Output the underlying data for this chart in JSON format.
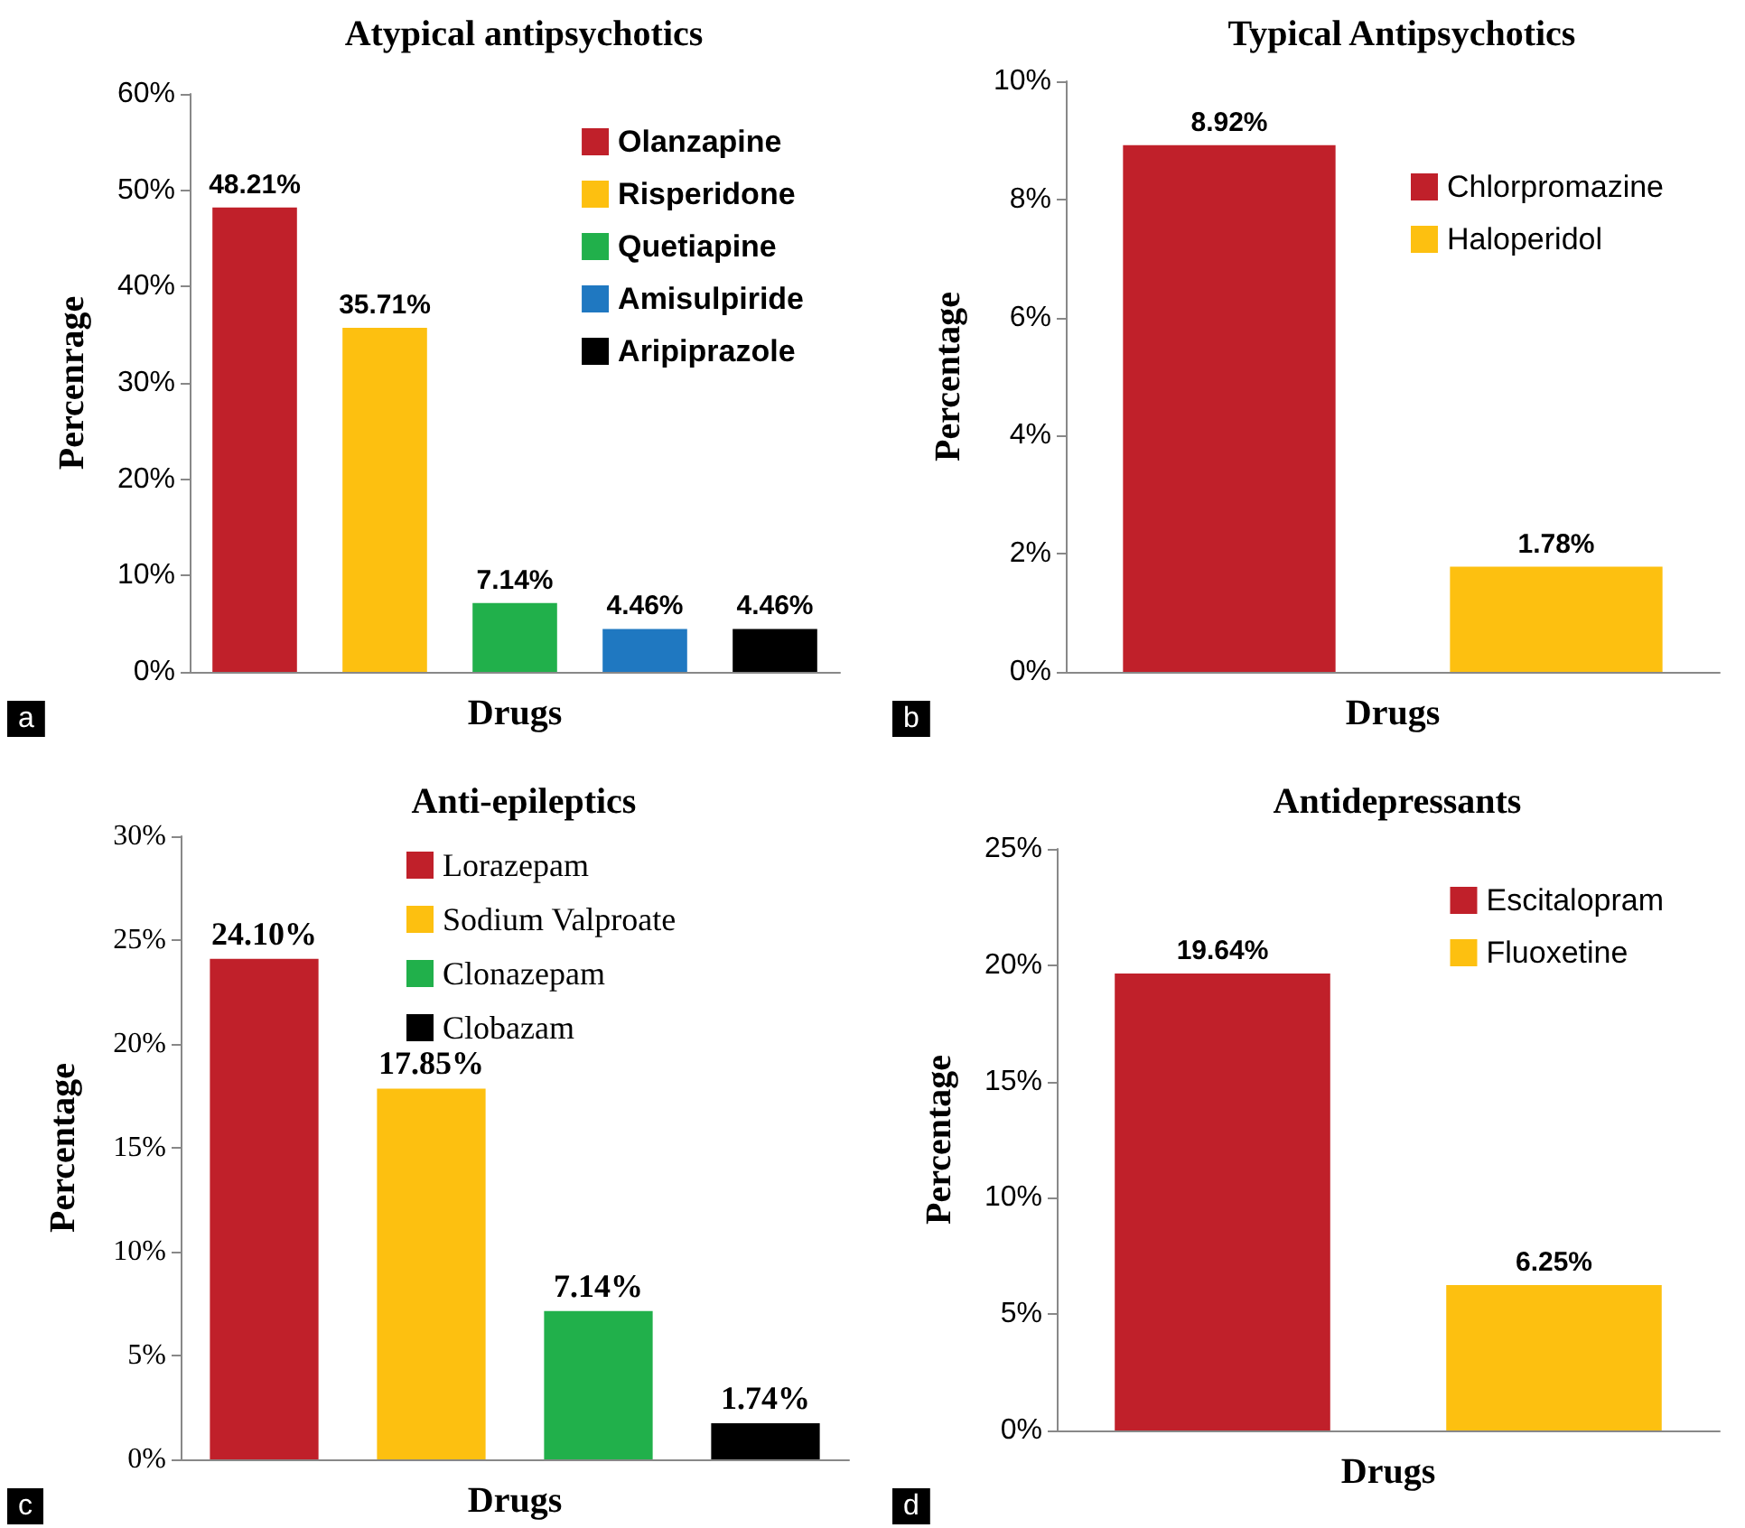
{
  "chart_data": [
    {
      "type": "bar",
      "title": "Atypical antipsychotics",
      "xlabel": "Drugs",
      "ylabel": "Percenrage",
      "categories": [
        null,
        null,
        null,
        null,
        null
      ],
      "ylim": [
        0,
        60
      ],
      "yticks": [
        {
          "value": 0,
          "label": "0%"
        },
        {
          "value": 10,
          "label": "10%"
        },
        {
          "value": 20,
          "label": "20%"
        },
        {
          "value": 30,
          "label": "30%"
        },
        {
          "value": 40,
          "label": "40%"
        },
        {
          "value": 50,
          "label": "50%"
        },
        {
          "value": 60,
          "label": "60%"
        }
      ],
      "legend": "top right",
      "grid": false,
      "annotations": [
        "a"
      ],
      "series": [
        {
          "name": "Olanzapine",
          "color": "#c0202a",
          "values": [
            48.21,
            null,
            null,
            null,
            null
          ],
          "value_labels": [
            "48.21%",
            null,
            null,
            null,
            null
          ]
        },
        {
          "name": "Risperidone",
          "color": "#fdc010",
          "values": [
            null,
            35.71,
            null,
            null,
            null
          ],
          "value_labels": [
            null,
            "35.71%",
            null,
            null,
            null
          ]
        },
        {
          "name": "Quetiapine",
          "color": "#21b04b",
          "values": [
            null,
            null,
            7.14,
            null,
            null
          ],
          "value_labels": [
            null,
            null,
            "7.14%",
            null,
            null
          ]
        },
        {
          "name": "Amisulpiride",
          "color": "#1f78c1",
          "values": [
            null,
            null,
            null,
            4.46,
            null
          ],
          "value_labels": [
            null,
            null,
            null,
            "4.46%",
            null
          ]
        },
        {
          "name": "Aripiprazole",
          "color": "#000000",
          "values": [
            null,
            null,
            null,
            null,
            4.46
          ],
          "value_labels": [
            null,
            null,
            null,
            null,
            "4.46%"
          ]
        }
      ]
    },
    {
      "type": "bar",
      "title": "Typical Antipsychotics",
      "xlabel": "Drugs",
      "ylabel": "Percentage",
      "categories": [
        null,
        null
      ],
      "ylim": [
        0,
        10
      ],
      "yticks": [
        {
          "value": 0,
          "label": "0%"
        },
        {
          "value": 2,
          "label": "2%"
        },
        {
          "value": 4,
          "label": "4%"
        },
        {
          "value": 6,
          "label": "6%"
        },
        {
          "value": 8,
          "label": "8%"
        },
        {
          "value": 10,
          "label": "10%"
        }
      ],
      "legend": "top right",
      "grid": false,
      "annotations": [
        "b"
      ],
      "series": [
        {
          "name": "Chlorpromazine",
          "color": "#c0202a",
          "values": [
            8.92,
            null
          ],
          "value_labels": [
            "8.92%",
            null
          ]
        },
        {
          "name": "Haloperidol",
          "color": "#fdc010",
          "values": [
            null,
            1.78
          ],
          "value_labels": [
            null,
            "1.78%"
          ]
        }
      ]
    },
    {
      "type": "bar",
      "title": "Anti-epileptics",
      "xlabel": "Drugs",
      "ylabel": "Percentage",
      "categories": [
        null,
        null,
        null,
        null
      ],
      "ylim": [
        0,
        30
      ],
      "yticks": [
        {
          "value": 0,
          "label": "0%"
        },
        {
          "value": 5,
          "label": "5%"
        },
        {
          "value": 10,
          "label": "10%"
        },
        {
          "value": 15,
          "label": "15%"
        },
        {
          "value": 20,
          "label": "20%"
        },
        {
          "value": 25,
          "label": "25%"
        },
        {
          "value": 30,
          "label": "30%"
        }
      ],
      "legend": "top",
      "grid": false,
      "annotations": [
        "c"
      ],
      "series": [
        {
          "name": "Lorazepam",
          "color": "#c0202a",
          "values": [
            24.1,
            null,
            null,
            null
          ],
          "value_labels": [
            "24.10%",
            null,
            null,
            null
          ]
        },
        {
          "name": "Sodium Valproate",
          "color": "#fdc010",
          "values": [
            null,
            17.85,
            null,
            null
          ],
          "value_labels": [
            null,
            "17.85%",
            null,
            null
          ]
        },
        {
          "name": "Clonazepam",
          "color": "#21b04b",
          "values": [
            null,
            null,
            7.14,
            null
          ],
          "value_labels": [
            null,
            null,
            "7.14%",
            null
          ]
        },
        {
          "name": "Clobazam",
          "color": "#000000",
          "values": [
            null,
            null,
            null,
            1.74
          ],
          "value_labels": [
            null,
            null,
            null,
            "1.74%"
          ]
        }
      ]
    },
    {
      "type": "bar",
      "title": "Antidepressants",
      "xlabel": "Drugs",
      "ylabel": "Percentage",
      "categories": [
        null,
        null
      ],
      "ylim": [
        0,
        25
      ],
      "yticks": [
        {
          "value": 0,
          "label": "0%"
        },
        {
          "value": 5,
          "label": "5%"
        },
        {
          "value": 10,
          "label": "10%"
        },
        {
          "value": 15,
          "label": "15%"
        },
        {
          "value": 20,
          "label": "20%"
        },
        {
          "value": 25,
          "label": "25%"
        }
      ],
      "legend": "top right",
      "grid": false,
      "annotations": [
        "d"
      ],
      "series": [
        {
          "name": "Escitalopram",
          "color": "#c0202a",
          "values": [
            19.64,
            null
          ],
          "value_labels": [
            "19.64%",
            null
          ]
        },
        {
          "name": "Fluoxetine",
          "color": "#fdc010",
          "values": [
            null,
            6.25
          ],
          "value_labels": [
            null,
            "6.25%"
          ]
        }
      ]
    }
  ]
}
